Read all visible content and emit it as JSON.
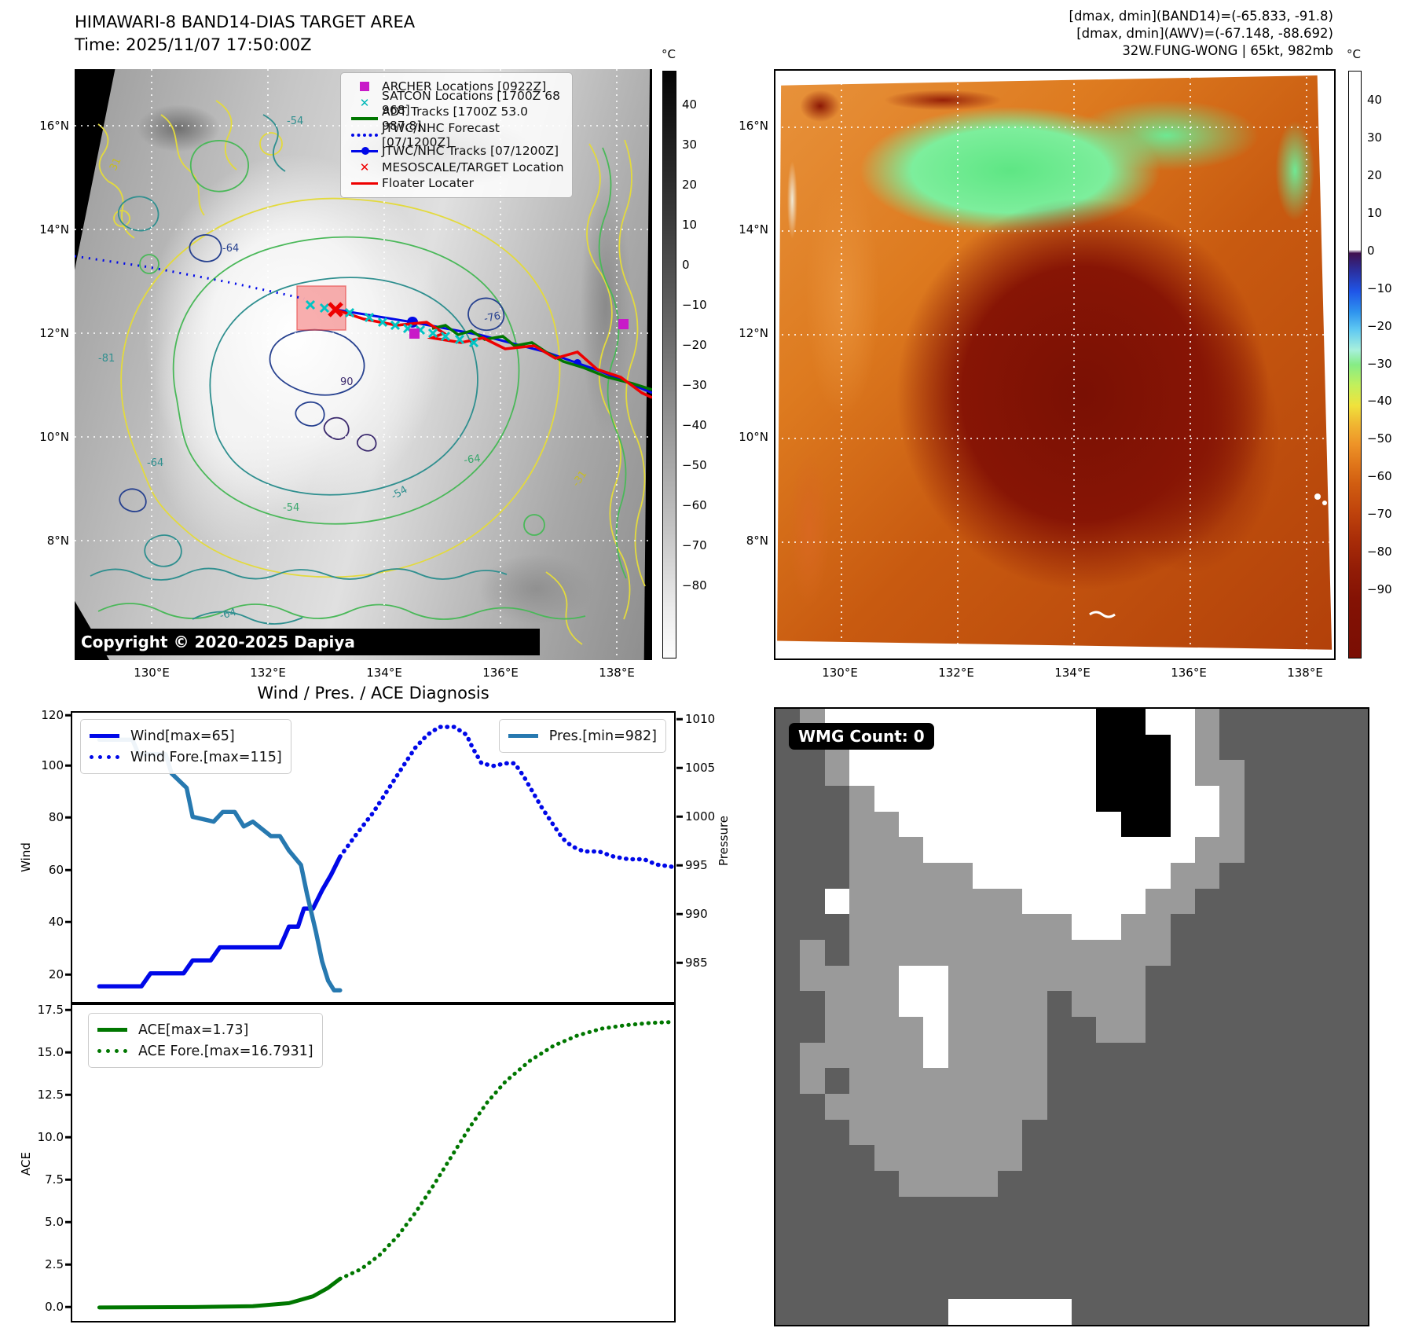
{
  "left_map": {
    "title_line1": "HIMAWARI-8 BAND14-DIAS TARGET AREA",
    "title_line2": "Time: 2025/11/07 17:50:00Z",
    "copyright": "Copyright © 2020-2025 Dapiya",
    "colorbar": {
      "unit": "°C",
      "ticks": [
        "40",
        "30",
        "20",
        "10",
        "0",
        "−10",
        "−20",
        "−30",
        "−40",
        "−50",
        "−60",
        "−70",
        "−80"
      ]
    },
    "lat_ticks": [
      "16°N",
      "14°N",
      "12°N",
      "10°N",
      "8°N"
    ],
    "lon_ticks": [
      "130°E",
      "132°E",
      "134°E",
      "136°E",
      "138°E"
    ],
    "legend": [
      {
        "label": "ARCHER Locations [0922Z]",
        "marker": "square",
        "color": "#c819c8"
      },
      {
        "label": "SATCON Locations [1700Z 68 968]",
        "marker": "x",
        "color": "#00b8b8"
      },
      {
        "label": "ADT Tracks [1700Z 53.0 987.8]",
        "marker": "line",
        "color": "#007700"
      },
      {
        "label": "JTWC/NHC Forecast [07/1200Z]",
        "marker": "dotted-line",
        "color": "#0008e8"
      },
      {
        "label": "JTWC/NHC Tracks [07/1200Z]",
        "marker": "line-dot",
        "color": "#0008e8"
      },
      {
        "label": "MESOSCALE/TARGET Location",
        "marker": "x",
        "color": "#ee0000"
      },
      {
        "label": "Floater Locater",
        "marker": "line",
        "color": "#ee0000"
      }
    ],
    "contour_labels": [
      {
        "text": "31"
      },
      {
        "text": "-64"
      },
      {
        "text": "-81"
      },
      {
        "text": "90"
      },
      {
        "text": "-76"
      },
      {
        "text": "-64"
      },
      {
        "text": "-54"
      },
      {
        "text": "-64"
      },
      {
        "text": "-54"
      },
      {
        "text": "-31"
      },
      {
        "text": "-54"
      },
      {
        "text": "-64"
      }
    ]
  },
  "right_map": {
    "header_line1": "[dmax, dmin](BAND14)=(-65.833, -91.8)",
    "header_line2": "[dmax, dmin](AWV)=(-67.148, -88.692)",
    "header_line3": "32W.FUNG-WONG | 65kt, 982mb",
    "colorbar": {
      "unit": "°C",
      "ticks": [
        "40",
        "30",
        "20",
        "10",
        "0",
        "−10",
        "−20",
        "−30",
        "−40",
        "−50",
        "−60",
        "−70",
        "−80",
        "−90"
      ]
    },
    "lat_ticks": [
      "16°N",
      "14°N",
      "12°N",
      "10°N",
      "8°N"
    ],
    "lon_ticks": [
      "130°E",
      "132°E",
      "134°E",
      "136°E",
      "138°E"
    ]
  },
  "wmg": {
    "count_label": "WMG Count: 0",
    "palette": {
      "D": "#5e5e5e",
      "L": "#9a9a9a",
      "W": "#ffffff",
      "B": "#000000"
    },
    "grid": [
      "DLWWWWWWWWWWWBBWWLDDDDDD",
      "DDLWWWWWWWWWWBBBWLDDDDDD",
      "DDLWWWWWWWWWWBBBWLLDDDDD",
      "DDDLWWWWWWWWWBBBWWLDDDDD",
      "DDDLLWWWWWWWWWBBWWLDDDDD",
      "DDDLLLWWWWWWWWWWWLLDDDDD",
      "DDDLLLLLWWWWWWWWLLDDDDDD",
      "DDWLLLLLLLWWWWWLLDDDDDDD",
      "DDDLLLLLLLLLWWLLDDDDDDDD",
      "DLDLLLLLLLLLLLLLDDDDDDDD",
      "DLLLLWWLLLLLLLLDDDDDDDDD",
      "DDLLLWWLLLLDLLLDDDDDDDDD",
      "DDLLLLWLLLLDDLLDDDDDDDDD",
      "DLLLLLWLLLLDDDDDDDDDDDDD",
      "DLDLLLLLLLLDDDDDDDDDDDDD",
      "DDLLLLLLLLLDDDDDDDDDDDDD",
      "DDDLLLLLLLDDDDDDDDDDDDDD",
      "DDDDLLLLLLDDDDDDDDDDDDDD",
      "DDDDDLLLLDDDDDDDDDDDDDDD",
      "DDDDDDDDDDDDDDDDDDDDDDDD",
      "DDDDDDDDDDDDDDDDDDDDDDDD",
      "DDDDDDDDDDDDDDDDDDDDDDDD",
      "DDDDDDDDDDDDDDDDDDDDDDDD",
      "DDDDDDDWWWWWDDDDDDDDDDDD"
    ]
  },
  "chart_data": [
    {
      "id": "wind-pressure",
      "type": "line",
      "title": "Wind / Pres. / ACE Diagnosis",
      "ylabel_left": "Wind",
      "ylabel_right": "Pressure",
      "xlim": [
        0,
        1
      ],
      "ylim_left": [
        9,
        120.5
      ],
      "ylim_right": [
        980.8,
        1010.8
      ],
      "yticks_left": [
        120,
        100,
        80,
        60,
        40,
        20
      ],
      "ytick_labels_left": [
        "120",
        "100",
        "80",
        "60",
        "40",
        "20"
      ],
      "yticks_right": [
        1010,
        1005,
        1000,
        995,
        990,
        985
      ],
      "ytick_labels_right": [
        "1010",
        "1005",
        "1000",
        "995",
        "990",
        "985"
      ],
      "grid": false,
      "legend_position": [
        "upper left",
        "upper right"
      ],
      "series": [
        {
          "name": "Wind",
          "label": "Wind[max=65]",
          "color": "#0008e8",
          "axis": "left",
          "width": 5.5,
          "dash": "",
          "x": [
            0.045,
            0.115,
            0.13,
            0.185,
            0.2,
            0.23,
            0.245,
            0.345,
            0.36,
            0.375,
            0.385,
            0.4,
            0.415,
            0.43,
            0.445
          ],
          "y": [
            15,
            15,
            20,
            20,
            25,
            25,
            30,
            30,
            38,
            38,
            45,
            45,
            52,
            58,
            65
          ]
        },
        {
          "name": "Wind Fore.",
          "label": "Wind Fore.[max=115]",
          "color": "#0008e8",
          "axis": "left",
          "width": 5.5,
          "dash": "0.5 8",
          "x": [
            0.445,
            0.47,
            0.5,
            0.525,
            0.55,
            0.57,
            0.59,
            0.61,
            0.635,
            0.655,
            0.665,
            0.68,
            0.7,
            0.72,
            0.735,
            0.75,
            0.765,
            0.78,
            0.8,
            0.815,
            0.83,
            0.85,
            0.875,
            0.9,
            0.925,
            0.95,
            0.97,
            1.0
          ],
          "y": [
            65,
            73,
            82,
            91,
            100,
            107,
            112,
            115,
            115,
            112,
            107,
            101,
            100,
            101,
            101,
            96,
            90,
            84,
            77,
            72,
            69,
            67,
            67,
            65,
            64,
            64,
            62,
            61
          ]
        },
        {
          "name": "Pres.",
          "label": "Pres.[min=982]",
          "color": "#2779b0",
          "axis": "right",
          "width": 5.5,
          "dash": "",
          "x": [
            0.045,
            0.1,
            0.11,
            0.155,
            0.165,
            0.19,
            0.2,
            0.235,
            0.25,
            0.27,
            0.285,
            0.3,
            0.33,
            0.345,
            0.36,
            0.38,
            0.39,
            0.405,
            0.415,
            0.425,
            0.435,
            0.445
          ],
          "y": [
            1008,
            1008,
            1006.5,
            1006.5,
            1004.5,
            1003,
            1000,
            999.5,
            1000.5,
            1000.5,
            999,
            999.5,
            998,
            998,
            996.5,
            995,
            992,
            988,
            985,
            983,
            982,
            982
          ]
        }
      ]
    },
    {
      "id": "ace",
      "type": "line",
      "ylabel_left": "ACE",
      "xlim": [
        0,
        1
      ],
      "ylim_left": [
        -0.74,
        17.78
      ],
      "yticks_left": [
        17.5,
        15.0,
        12.5,
        10.0,
        7.5,
        5.0,
        2.5,
        0.0
      ],
      "ytick_labels_left": [
        "17.5",
        "15.0",
        "12.5",
        "10.0",
        "7.5",
        "5.0",
        "2.5",
        "0.0"
      ],
      "grid": false,
      "legend_position": [
        "upper left"
      ],
      "series": [
        {
          "name": "ACE",
          "label": "ACE[max=1.73]",
          "color": "#007700",
          "axis": "left",
          "width": 5,
          "dash": "",
          "x": [
            0.045,
            0.2,
            0.3,
            0.36,
            0.4,
            0.425,
            0.445
          ],
          "y": [
            0.05,
            0.07,
            0.12,
            0.3,
            0.7,
            1.2,
            1.73
          ]
        },
        {
          "name": "ACE Fore.",
          "label": "ACE Fore.[max=16.7931]",
          "color": "#007700",
          "axis": "left",
          "width": 5,
          "dash": "0.5 8",
          "x": [
            0.445,
            0.48,
            0.51,
            0.54,
            0.57,
            0.6,
            0.63,
            0.66,
            0.69,
            0.72,
            0.76,
            0.8,
            0.84,
            0.88,
            0.92,
            0.96,
            1.0
          ],
          "y": [
            1.73,
            2.3,
            3.1,
            4.2,
            5.6,
            7.2,
            8.9,
            10.6,
            12.1,
            13.3,
            14.5,
            15.4,
            16.0,
            16.4,
            16.6,
            16.73,
            16.79
          ]
        }
      ]
    }
  ]
}
